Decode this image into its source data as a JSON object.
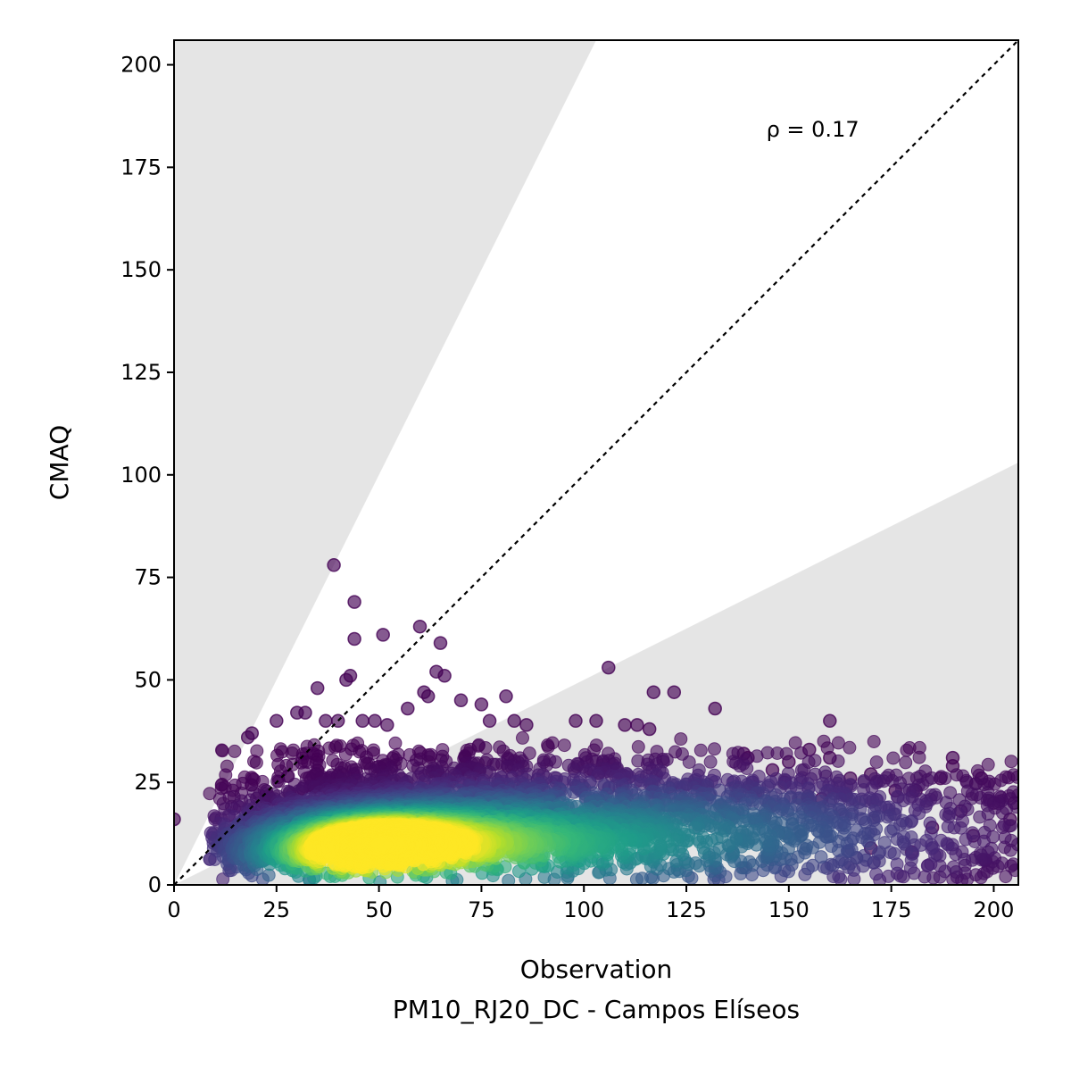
{
  "chart_data": {
    "type": "scatter",
    "title": "",
    "xlabel": "Observation",
    "subtitle": "PM10_RJ20_DC - Campos Elíseos",
    "ylabel": "CMAQ",
    "xlim": [
      0,
      206
    ],
    "ylim": [
      0,
      206
    ],
    "xticks": [
      "0",
      "25",
      "50",
      "75",
      "100",
      "125",
      "150",
      "175",
      "200"
    ],
    "yticks": [
      "0",
      "25",
      "50",
      "75",
      "100",
      "125",
      "150",
      "175",
      "200"
    ],
    "annotation": "ρ = 0.17",
    "grid": false,
    "colormap": "viridis",
    "one_to_one_line": true,
    "shaded_region_slopes": {
      "upper": 2.0,
      "lower": 0.5
    },
    "colors": {
      "shade": "#e5e5e5",
      "low_density": "#440154",
      "mid_density": "#21918c",
      "high_density": "#fde725",
      "diagonal": "#000000"
    },
    "density_clusters": [
      {
        "x": 52,
        "y": 10,
        "sx": 12,
        "sy": 4,
        "weight": 1.0
      },
      {
        "x": 40,
        "y": 8,
        "sx": 14,
        "sy": 5,
        "weight": 0.8
      },
      {
        "x": 70,
        "y": 10,
        "sx": 18,
        "sy": 6,
        "weight": 0.6
      },
      {
        "x": 100,
        "y": 10,
        "sx": 25,
        "sy": 7,
        "weight": 0.35
      },
      {
        "x": 140,
        "y": 12,
        "sx": 30,
        "sy": 8,
        "weight": 0.18
      }
    ],
    "outlier_points": [
      [
        39,
        78
      ],
      [
        44,
        69
      ],
      [
        44,
        60
      ],
      [
        51,
        61
      ],
      [
        60,
        63
      ],
      [
        65,
        59
      ],
      [
        43,
        51
      ],
      [
        42,
        50
      ],
      [
        66,
        51
      ],
      [
        64,
        52
      ],
      [
        35,
        48
      ],
      [
        61,
        47
      ],
      [
        62,
        46
      ],
      [
        106,
        53
      ],
      [
        81,
        46
      ],
      [
        117,
        47
      ],
      [
        122,
        47
      ],
      [
        132,
        43
      ],
      [
        160,
        40
      ],
      [
        0,
        16
      ],
      [
        18,
        36
      ],
      [
        19,
        37
      ],
      [
        25,
        40
      ],
      [
        30,
        42
      ],
      [
        32,
        42
      ],
      [
        37,
        40
      ],
      [
        40,
        40
      ],
      [
        46,
        40
      ],
      [
        49,
        40
      ],
      [
        52,
        39
      ],
      [
        57,
        43
      ],
      [
        70,
        45
      ],
      [
        75,
        44
      ],
      [
        77,
        40
      ],
      [
        83,
        40
      ],
      [
        86,
        39
      ],
      [
        98,
        40
      ],
      [
        103,
        40
      ],
      [
        110,
        39
      ],
      [
        113,
        39
      ],
      [
        116,
        38
      ],
      [
        139,
        32
      ],
      [
        140,
        31
      ],
      [
        146,
        28
      ],
      [
        150,
        30
      ],
      [
        155,
        33
      ],
      [
        160,
        31
      ],
      [
        165,
        26
      ],
      [
        170,
        27
      ],
      [
        176,
        23
      ],
      [
        181,
        23
      ],
      [
        187,
        26
      ],
      [
        190,
        31
      ],
      [
        190,
        29
      ],
      [
        197,
        26
      ],
      [
        200,
        20
      ],
      [
        205,
        20
      ],
      [
        204,
        16
      ],
      [
        149,
        25
      ],
      [
        158,
        21
      ],
      [
        185,
        14
      ],
      [
        192,
        18
      ],
      [
        195,
        12
      ],
      [
        198,
        6
      ],
      [
        180,
        8
      ],
      [
        170,
        9
      ]
    ]
  }
}
